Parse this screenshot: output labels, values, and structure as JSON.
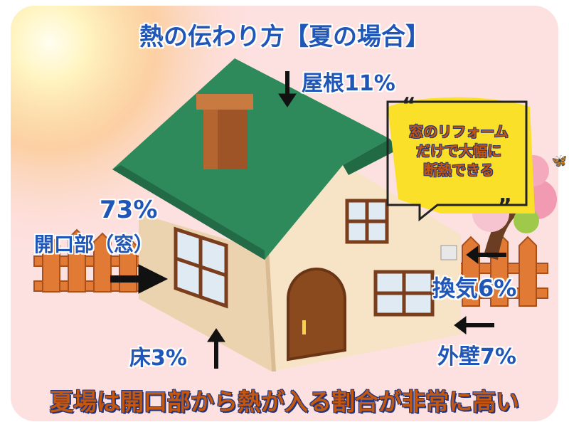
{
  "title": "熱の伝わり方【夏の場合】",
  "labels": {
    "roof": "屋根11%",
    "opening_percent": "73%",
    "opening": "開口部（窓）",
    "floor": "床3%",
    "ventilation": "換気6%",
    "outer_wall": "外壁7%"
  },
  "bubble": {
    "lines": [
      "窓のリフォーム",
      "だけで大幅に",
      "断熱できる"
    ]
  },
  "footer": "夏場は開口部から熱が入る割合が非常に高い",
  "colors": {
    "background": "#fde0e0",
    "label_text": "#1f56b8",
    "footer_text": "#c4570f",
    "roof": "#2e8a5a",
    "bubble": "#fbe02a"
  },
  "icons": [
    "sun",
    "chimney",
    "arrow-down",
    "arrow-right",
    "arrow-left",
    "arrow-up",
    "speech-bubble",
    "blossom-tree",
    "fence",
    "butterfly"
  ]
}
